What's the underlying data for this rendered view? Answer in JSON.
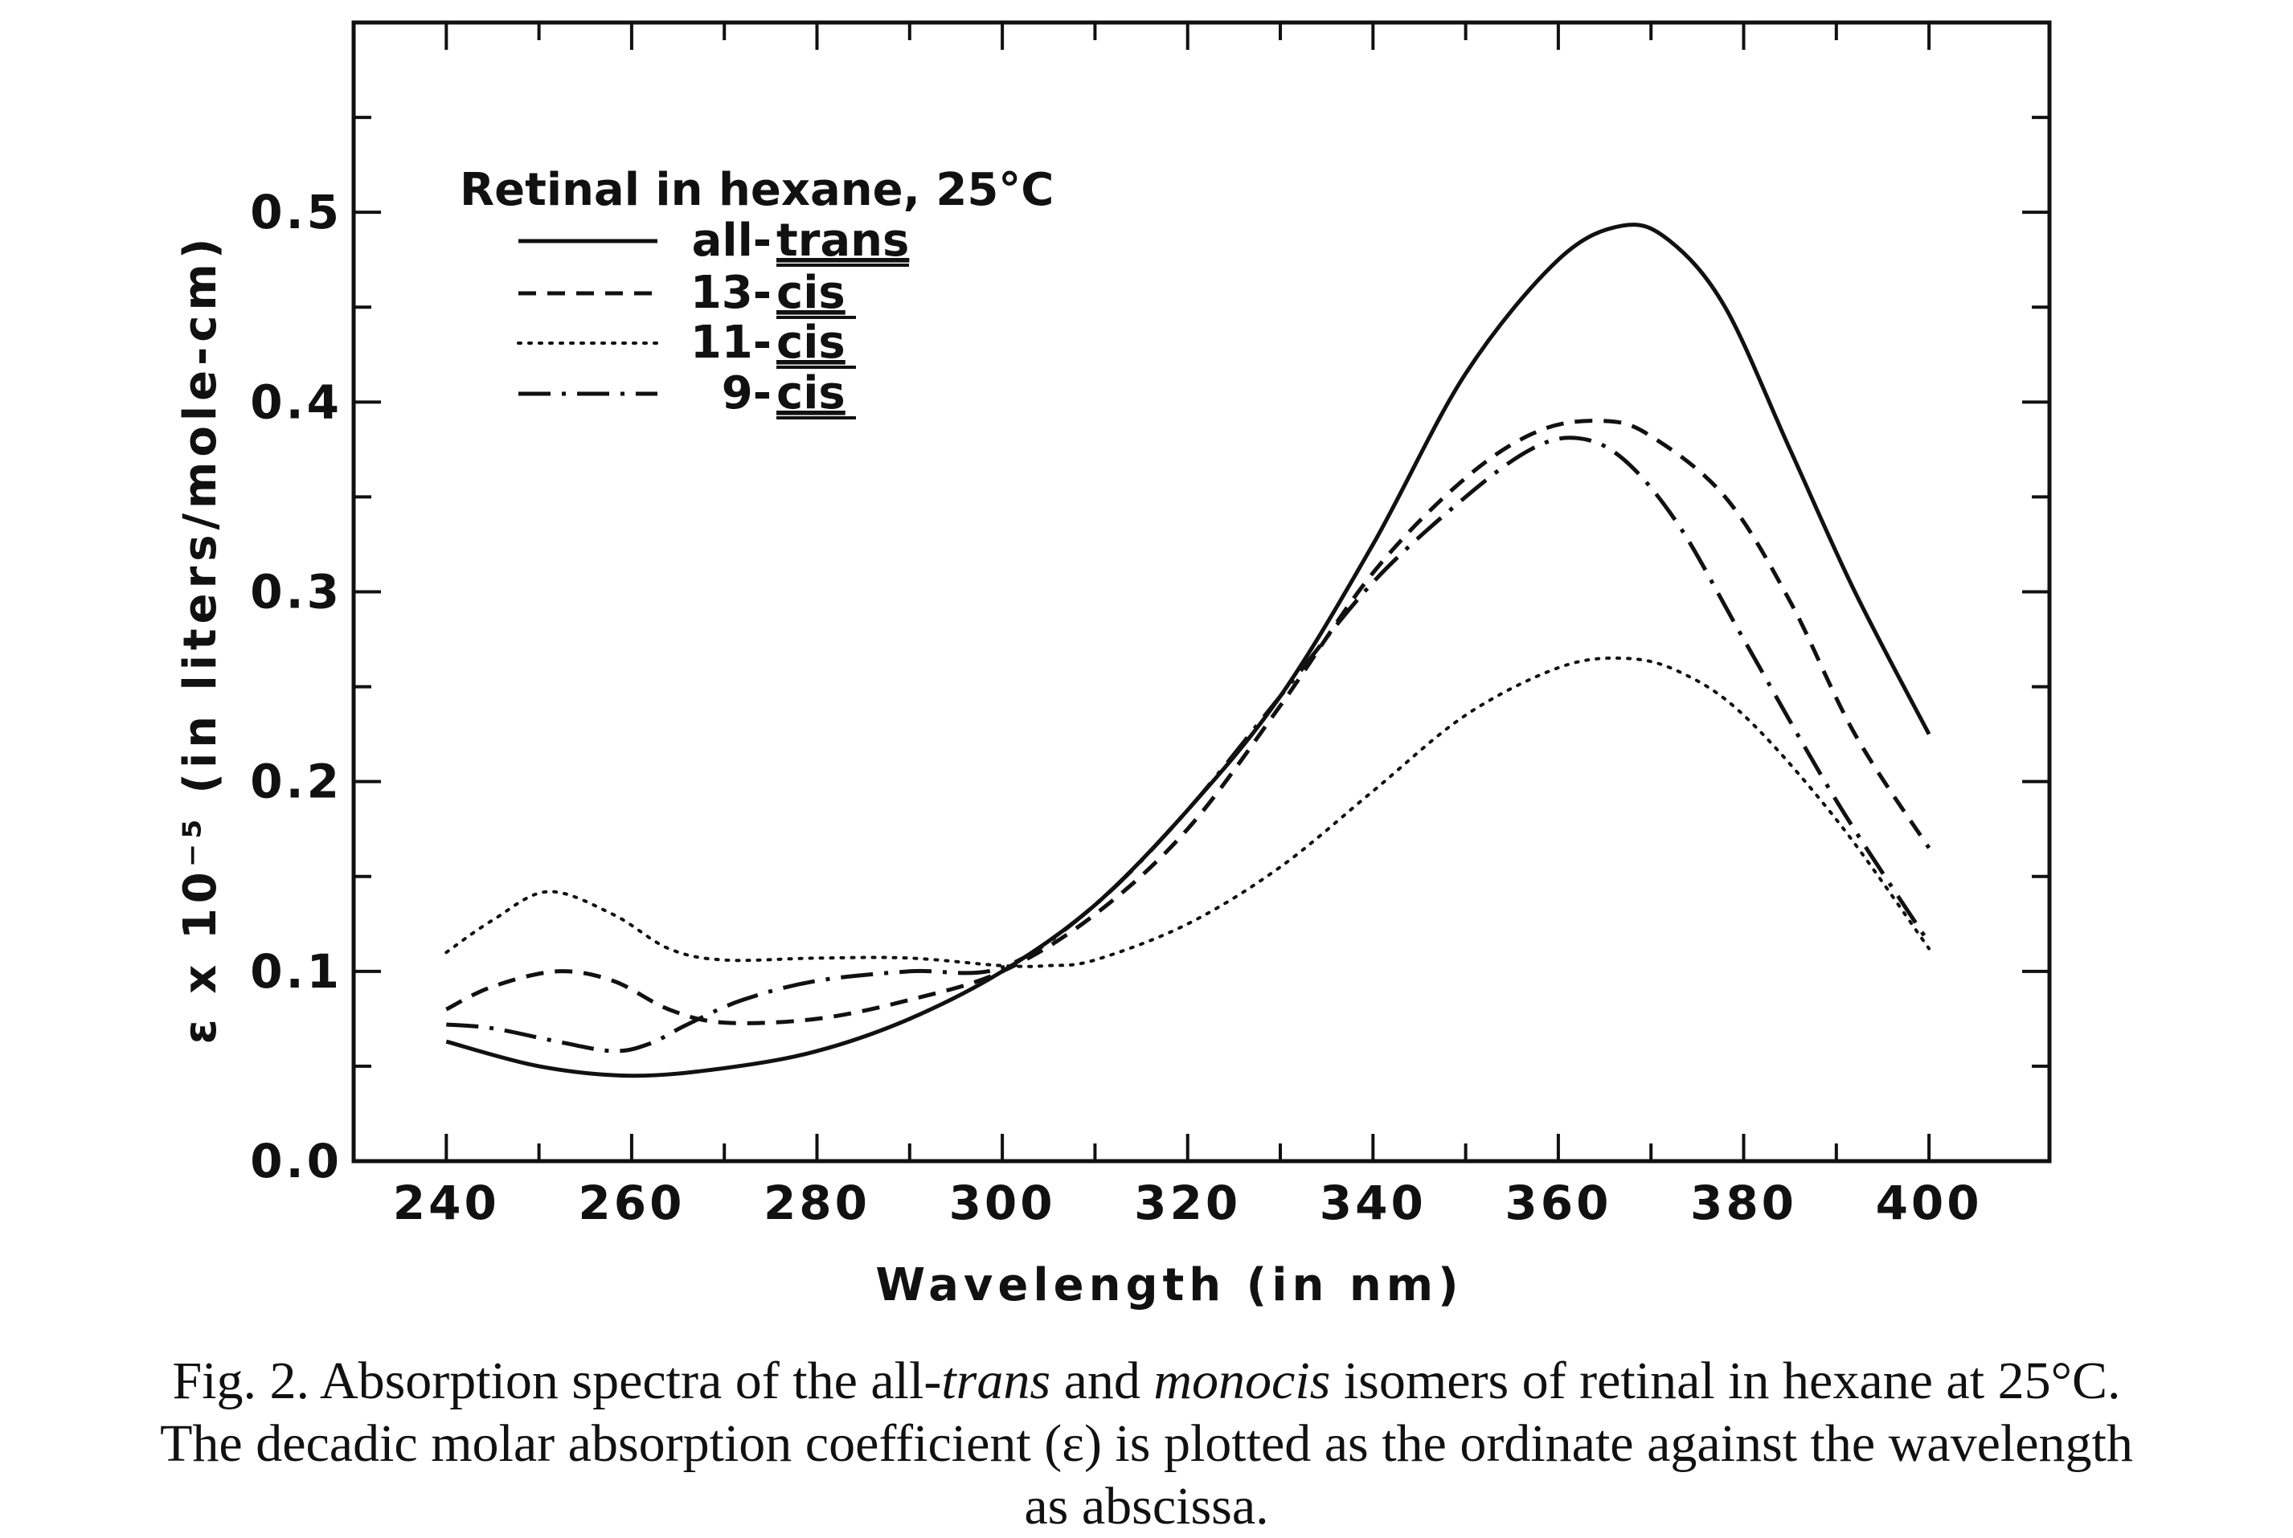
{
  "chart_data": {
    "type": "line",
    "xlabel": "Wavelength (in nm)",
    "ylabel": "ε x 10⁻⁵ (in liters/mole-cm)",
    "xlim": [
      230,
      413
    ],
    "ylim": [
      0,
      0.6
    ],
    "xticks": [
      "240",
      "260",
      "280",
      "300",
      "320",
      "340",
      "360",
      "380",
      "400"
    ],
    "yticks": [
      "0.0",
      "0.1",
      "0.2",
      "0.3",
      "0.4",
      "0.5"
    ],
    "grid": false,
    "legend": {
      "title": "Retinal in hexane, 25°C",
      "placement": "top-left",
      "entries": [
        {
          "prefix": "all-",
          "isomer": "trans",
          "dash": "solid"
        },
        {
          "prefix": "13-",
          "isomer": "cis",
          "dash": "dashed"
        },
        {
          "prefix": "11-",
          "isomer": "cis",
          "dash": "dotted"
        },
        {
          "prefix": "9-",
          "isomer": "cis",
          "dash": "dashdot"
        }
      ]
    },
    "series": [
      {
        "key": "all-trans",
        "dash": "solid",
        "x": [
          240,
          250,
          260,
          270,
          280,
          290,
          300,
          310,
          320,
          330,
          340,
          350,
          360,
          367,
          372,
          378,
          385,
          392,
          400
        ],
        "y": [
          0.063,
          0.05,
          0.045,
          0.049,
          0.058,
          0.075,
          0.1,
          0.135,
          0.185,
          0.245,
          0.325,
          0.415,
          0.475,
          0.493,
          0.485,
          0.45,
          0.375,
          0.3,
          0.225
        ]
      },
      {
        "key": "13-cis",
        "dash": "dashed",
        "x": [
          240,
          245,
          252,
          258,
          264,
          270,
          280,
          290,
          300,
          310,
          320,
          330,
          340,
          350,
          358,
          365,
          370,
          378,
          385,
          392,
          400
        ],
        "y": [
          0.08,
          0.092,
          0.1,
          0.095,
          0.08,
          0.073,
          0.075,
          0.085,
          0.1,
          0.13,
          0.175,
          0.24,
          0.31,
          0.36,
          0.385,
          0.39,
          0.382,
          0.35,
          0.295,
          0.225,
          0.165
        ]
      },
      {
        "key": "11-cis",
        "dash": "dotted",
        "x": [
          240,
          245,
          251,
          258,
          264,
          270,
          280,
          290,
          300,
          305,
          310,
          320,
          330,
          340,
          350,
          360,
          367,
          373,
          380,
          390,
          400
        ],
        "y": [
          0.11,
          0.127,
          0.142,
          0.13,
          0.112,
          0.106,
          0.107,
          0.107,
          0.103,
          0.103,
          0.106,
          0.125,
          0.155,
          0.195,
          0.235,
          0.26,
          0.265,
          0.258,
          0.235,
          0.18,
          0.112
        ]
      },
      {
        "key": "9-cis",
        "dash": "dashdot",
        "x": [
          240,
          245,
          252,
          258,
          262,
          266,
          272,
          280,
          290,
          300,
          310,
          320,
          330,
          340,
          350,
          357,
          362,
          367,
          373,
          380,
          390,
          400
        ],
        "y": [
          0.072,
          0.07,
          0.063,
          0.058,
          0.062,
          0.072,
          0.085,
          0.095,
          0.1,
          0.102,
          0.135,
          0.185,
          0.245,
          0.305,
          0.35,
          0.375,
          0.381,
          0.37,
          0.335,
          0.275,
          0.19,
          0.115
        ]
      }
    ]
  },
  "caption": {
    "text_1": "Fig. 2. Absorption spectra of the all-",
    "em_1": "trans",
    "text_2": " and ",
    "em_2": "monocis",
    "text_3": " isomers of retinal in hexane at 25°C.",
    "line_2": "The decadic molar absorption coefficient (ε) is plotted as the ordinate against the wavelength",
    "line_3": "as abscissa."
  }
}
